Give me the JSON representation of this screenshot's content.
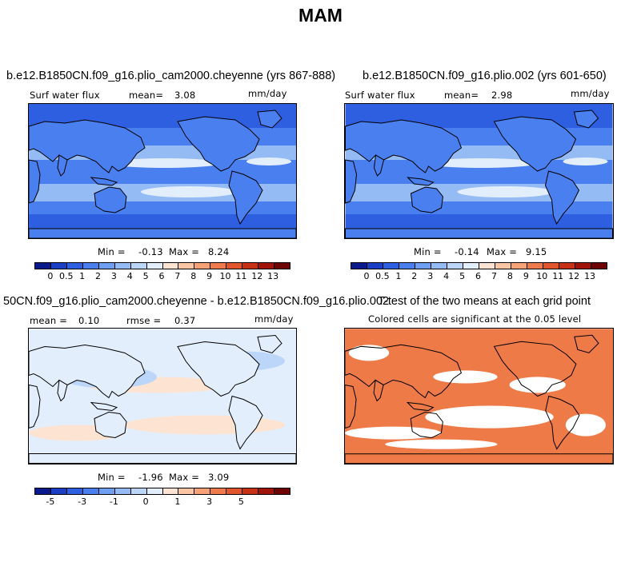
{
  "title": "MAM",
  "panels": [
    {
      "id": "top-left",
      "title": "b.e12.B1850CN.f09_g16.plio_cam2000.cheyenne (yrs 867-888)",
      "variable": "Surf water flux",
      "mean_label": "mean=",
      "mean_value": "3.08",
      "units": "mm/day",
      "min_label": "Min =",
      "min_value": "-0.13",
      "max_label": "Max =",
      "max_value": "8.24"
    },
    {
      "id": "top-right",
      "title": "b.e12.B1850CN.f09_g16.plio.002 (yrs 601-650)",
      "variable": "Surf water flux",
      "mean_label": "mean=",
      "mean_value": "2.98",
      "units": "mm/day",
      "min_label": "Min =",
      "min_value": "-0.14",
      "max_label": "Max =",
      "max_value": "9.15"
    },
    {
      "id": "bottom-left",
      "title": "50CN.f09_g16.plio_cam2000.cheyenne - b.e12.B1850CN.f09_g16.plio.002",
      "mean_label": "mean =",
      "mean_value": "0.10",
      "rmse_label": "rmse =",
      "rmse_value": "0.37",
      "units": "mm/day",
      "min_label": "Min =",
      "min_value": "-1.96",
      "max_label": "Max =",
      "max_value": "3.09"
    },
    {
      "id": "bottom-right",
      "title": "T-test of the two means at each grid point",
      "subtitle": "Colored cells are significant at the 0.05 level"
    }
  ],
  "colorbars": {
    "abs_colors": [
      "#0a1a8c",
      "#1a3fc4",
      "#2e5fe0",
      "#4a7ff0",
      "#6f9ff2",
      "#95bbf5",
      "#bcd6f9",
      "#e3eefc",
      "#fde4d2",
      "#fbc6a4",
      "#f7a276",
      "#ef7a4c",
      "#e0552c",
      "#c73216",
      "#a0140a",
      "#6e0404"
    ],
    "abs_labels": [
      "0",
      "0.5",
      "1",
      "2",
      "3",
      "4",
      "5",
      "6",
      "7",
      "8",
      "9",
      "10",
      "11",
      "12",
      "13"
    ],
    "diff_colors": [
      "#0a1a8c",
      "#1a3fc4",
      "#2e5fe0",
      "#4a7ff0",
      "#6f9ff2",
      "#95bbf5",
      "#bcd6f9",
      "#e3eefc",
      "#fde4d2",
      "#fbc6a4",
      "#f7a276",
      "#ef7a4c",
      "#e0552c",
      "#c73216",
      "#a0140a",
      "#6e0404"
    ],
    "diff_labels": [
      "-5",
      "-3",
      "-1",
      "0",
      "1",
      "3",
      "5"
    ],
    "diff_label_positions": [
      1,
      3,
      5,
      7,
      9,
      11,
      13
    ]
  },
  "map_colors": {
    "abs_ocean_deep": "#2e5fe0",
    "abs_ocean_mid": "#4a7ff0",
    "abs_band": "#95bbf5",
    "abs_pale": "#e3eefc",
    "diff_base": "#e3eefc",
    "diff_warm": "#fde4d2",
    "diff_cool": "#bcd6f9",
    "ttest_sig": "#ee7a48",
    "ttest_nonsig": "#ffffff"
  }
}
